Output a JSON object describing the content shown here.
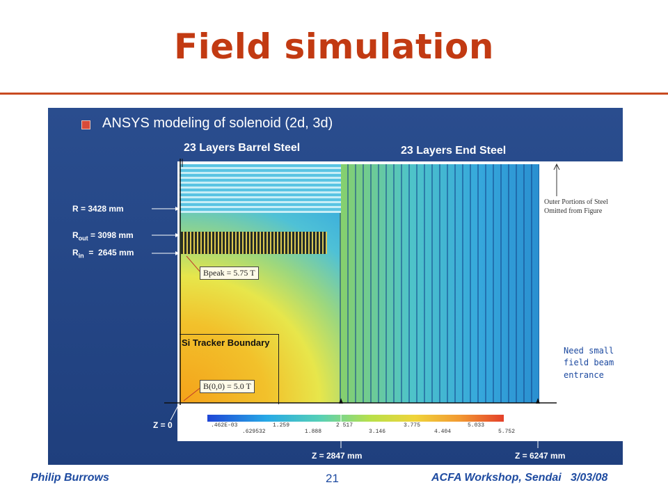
{
  "title": "Field simulation",
  "bullet": "ANSYS modeling of solenoid (2d, 3d)",
  "figure": {
    "barrel_label": "23 Layers Barrel Steel",
    "end_label": "23 Layers End Steel",
    "r_label": "R = 3428 mm",
    "rout_prefix": "R",
    "rout_sub": "out",
    "rout_value": " = 3098 mm",
    "rin_prefix": "R",
    "rin_sub": "in",
    "rin_value": "  =  2645 mm",
    "bpeak": "Bpeak = 5.75 T",
    "si_tracker": "Si Tracker Boundary",
    "b00": "B(0,0) = 5.0 T",
    "z0": "Z = 0",
    "z2847": "Z = 2847 mm",
    "z6247": "Z = 6247 mm",
    "outer_note": "Outer Portions of Steel Omitted from Figure",
    "colorbar_top": [
      ".462E-03",
      "1.259",
      "2.517",
      "3.775",
      "5.033"
    ],
    "colorbar_bottom": [
      ".629532",
      "1.888",
      "3.146",
      "4.404",
      "5.752"
    ]
  },
  "annotation": "Need small field beam entrance",
  "footer": {
    "left": "Philip Burrows",
    "page": "21",
    "right": "ACFA Workshop, Sendai   3/03/08"
  },
  "colors": {
    "title": "#c23a12",
    "panel": "#1f3f7d",
    "footer": "#1d4aa0"
  }
}
